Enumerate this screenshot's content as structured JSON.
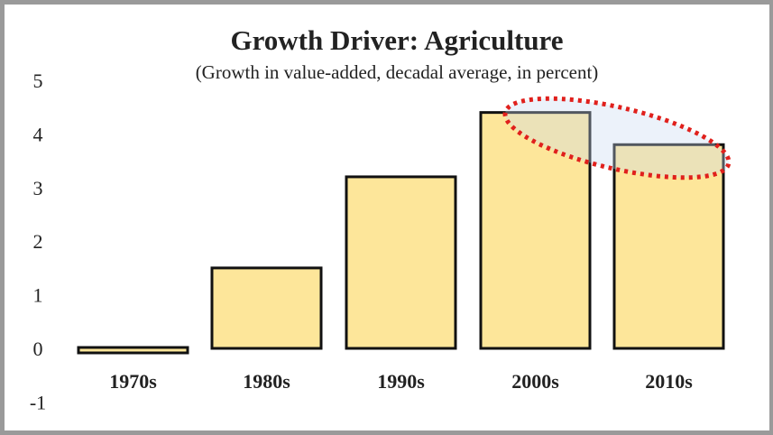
{
  "chart_data": {
    "type": "bar",
    "title": "Growth Driver: Agriculture",
    "subtitle": "(Growth in value-added, decadal average, in percent)",
    "categories": [
      "1970s",
      "1980s",
      "1990s",
      "2000s",
      "2010s"
    ],
    "values": [
      -0.1,
      1.5,
      3.2,
      4.4,
      3.8
    ],
    "ylim": [
      -1,
      5
    ],
    "yticks": [
      "5",
      "4",
      "3",
      "2",
      "1",
      "0",
      "-1"
    ],
    "ytick_values": [
      5,
      4,
      3,
      2,
      1,
      0,
      -1
    ],
    "xlabel": "",
    "ylabel": "",
    "grid": false,
    "bar_color": "#fde69a",
    "bar_edge_color": "#111111",
    "annotation": {
      "type": "dotted-ellipse",
      "highlights": [
        "2000s",
        "2010s"
      ],
      "color": "#e0201c"
    }
  }
}
